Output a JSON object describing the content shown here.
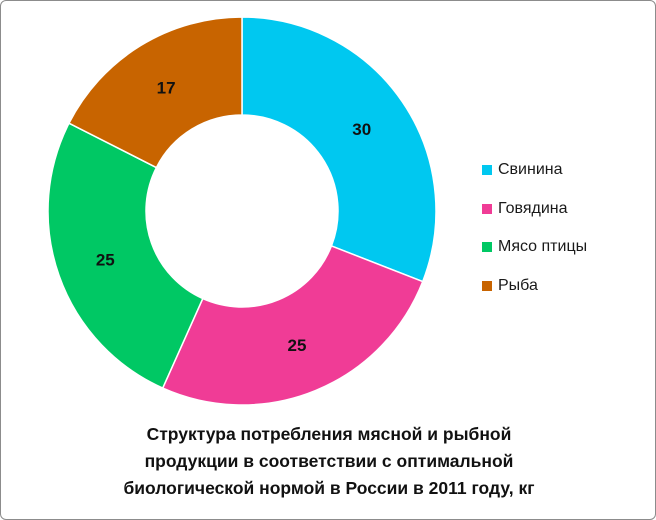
{
  "chart_data": {
    "type": "pie",
    "categories": [
      "Свинина",
      "Говядина",
      "Мясо птицы",
      "Рыба"
    ],
    "values": [
      30,
      25,
      25,
      17
    ],
    "data_labels": [
      "30",
      "25",
      "25",
      "17"
    ],
    "colors": [
      "#00c8f0",
      "#f03c96",
      "#00c864",
      "#c86400"
    ],
    "title_lines": [
      "Структура потребления мясной и рыбной",
      "продукции в соответствии с оптимальной",
      "биологической нормой в России в 2011 году, кг"
    ],
    "legend_position": "right",
    "style": "donut"
  }
}
